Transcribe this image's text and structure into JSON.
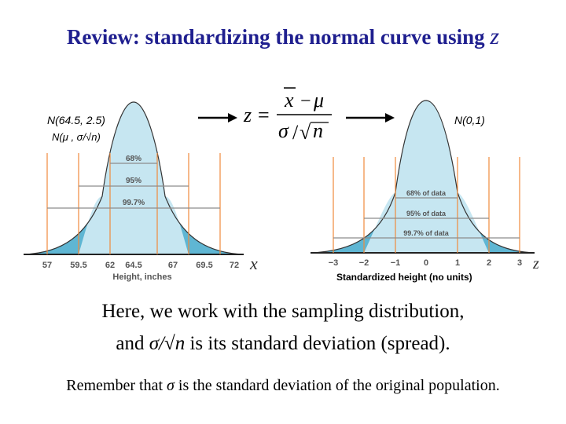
{
  "title": {
    "text": "Review: standardizing the normal curve using ",
    "var": "z"
  },
  "left_curve": {
    "label_dist": "N(64.5, 2.5)",
    "label_param": "N(μ , σ/√n)",
    "ticks": [
      "57",
      "59.5",
      "62",
      "64.5",
      "67",
      "69.5",
      "72"
    ],
    "axis_label": "Height, inches",
    "axis_var": "x",
    "bands": [
      "68%",
      "95%",
      "99.7%"
    ]
  },
  "right_curve": {
    "label_dist": "N(0,1)",
    "ticks": [
      "−3",
      "−2",
      "−1",
      "0",
      "1",
      "2",
      "3"
    ],
    "axis_var": "z",
    "bands": [
      "68% of data",
      "95% of data",
      "99.7% of data"
    ],
    "caption": "Standardized height (no units)"
  },
  "formula": {
    "lhs": "z",
    "eq": "=",
    "num_x": "x",
    "num_op": "−",
    "num_mu": "μ",
    "den_sigma": "σ",
    "den_slash": "/",
    "den_root": "√",
    "den_n": "n"
  },
  "notes": {
    "line1": "Here, we work with the sampling distribution,",
    "line2_pre": "and ",
    "line2_sym": "σ/√n",
    "line2_post": " is its standard deviation (spread).",
    "line3_pre": "Remember that ",
    "line3_sym": "σ",
    "line3_post": " is the standard deviation of the original population."
  },
  "colors": {
    "title": "#1f1f8f",
    "fill_light": "#c6e6f1",
    "fill_dark": "#5fb6d3",
    "guide": "#f08a3c",
    "band": "#8c8c8c"
  }
}
